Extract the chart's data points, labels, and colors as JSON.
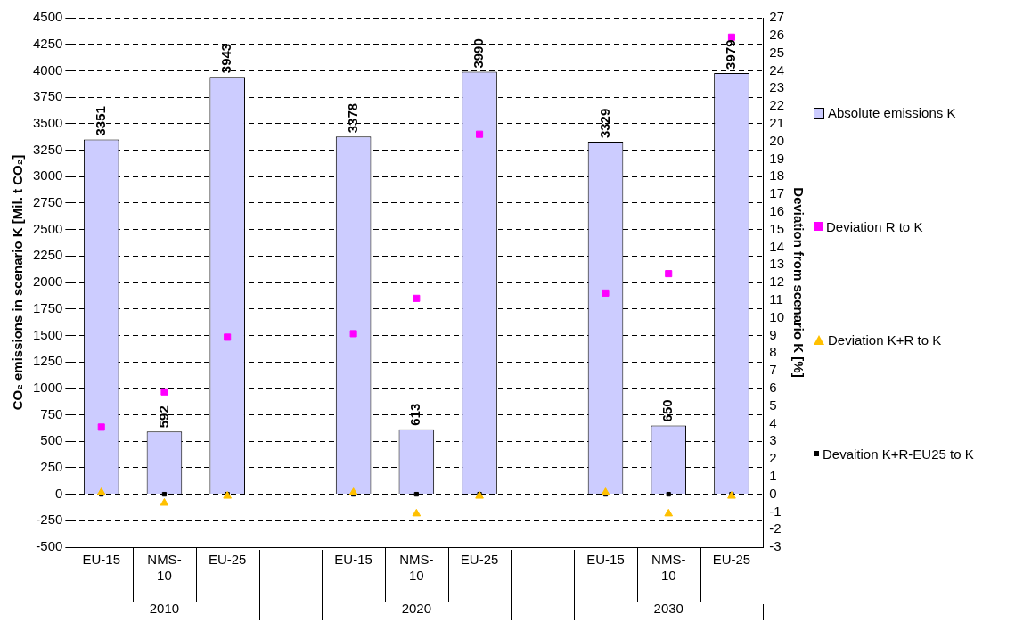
{
  "chart_data": {
    "type": "bar",
    "categories": [
      "EU-15",
      "NMS-10",
      "EU-25",
      null,
      "EU-15",
      "NMS-10",
      "EU-25",
      null,
      "EU-15",
      "NMS-10",
      "EU-25"
    ],
    "ylabel": "CO₂ emissions in scenario K [Mil. t CO₂]",
    "y2label": "Deviation from scenario K [%]",
    "ylim": [
      -500,
      4500
    ],
    "yticks": [
      -500,
      -250,
      0,
      250,
      500,
      750,
      1000,
      1250,
      1500,
      1750,
      2000,
      2250,
      2500,
      2750,
      3000,
      3250,
      3500,
      3750,
      4000,
      4250,
      4500
    ],
    "y2lim": [
      -3,
      27
    ],
    "y2ticks": [
      -3,
      -2,
      -1,
      0,
      1,
      2,
      3,
      4,
      5,
      6,
      7,
      8,
      9,
      10,
      11,
      12,
      13,
      14,
      15,
      16,
      17,
      18,
      19,
      20,
      21,
      22,
      23,
      24,
      25,
      26,
      27
    ],
    "grid": "y",
    "legend": "right",
    "annotations": [
      "2010",
      "2020",
      "2030"
    ],
    "series": [
      {
        "name": "Absolute emissions K",
        "color": "#ccccff",
        "values": [
          3351,
          592,
          3943,
          null,
          3378,
          613,
          3990,
          null,
          3329,
          650,
          3979
        ],
        "value_labels": [
          "3351",
          "592",
          "3943",
          null,
          "3378",
          "613",
          "3990",
          null,
          "3329",
          "650",
          "3979"
        ]
      },
      {
        "name": "Deviation R to K",
        "type": "scatter",
        "axis": "y2",
        "marker": "square",
        "color": "#ff00ff",
        "values": [
          3.8,
          5.8,
          8.9,
          null,
          9.1,
          11.1,
          20.4,
          null,
          11.4,
          12.5,
          25.9
        ]
      },
      {
        "name": "Deviation K+R to K",
        "type": "scatter",
        "axis": "y2",
        "marker": "triangle",
        "color": "#ffc000",
        "values": [
          0.1,
          -0.5,
          -0.1,
          null,
          0.1,
          -1.1,
          -0.1,
          null,
          0.1,
          -1.1,
          -0.1
        ]
      },
      {
        "name": "Devaition K+R-EU25 to K",
        "type": "scatter",
        "axis": "y2",
        "marker": "square",
        "color": "#000000",
        "values": [
          0,
          0,
          0,
          null,
          0,
          0,
          0,
          null,
          0,
          0,
          0
        ]
      }
    ]
  }
}
